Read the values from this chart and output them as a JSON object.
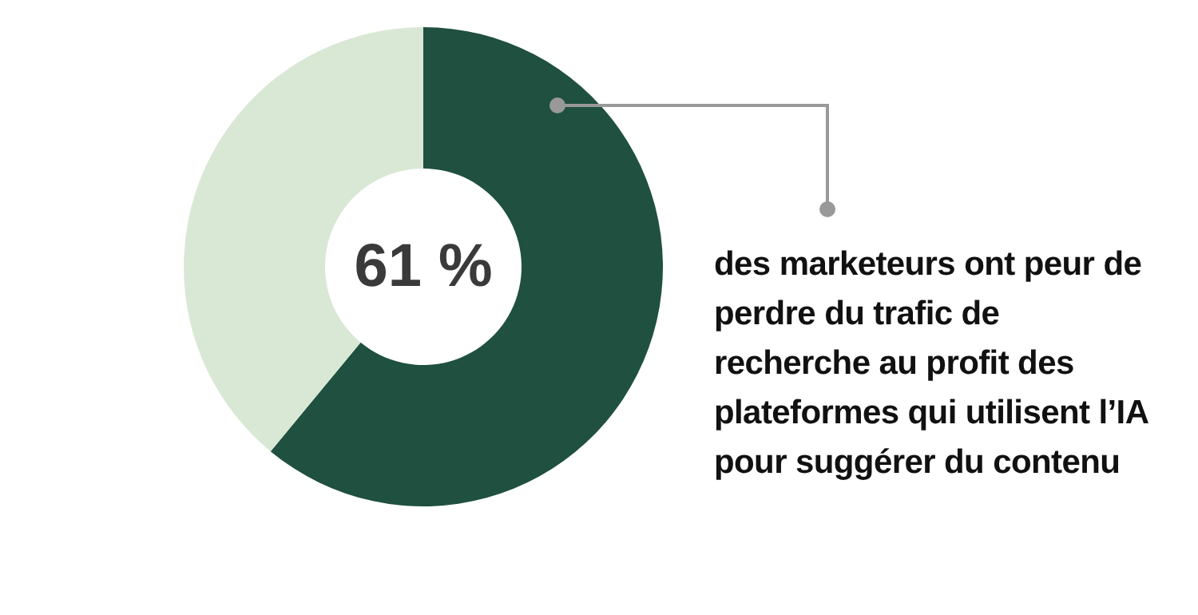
{
  "chart_data": {
    "type": "donut",
    "categories": [
      null,
      null
    ],
    "values": [
      61,
      39
    ],
    "colors": [
      "#1f5040",
      "#d9e8d5"
    ],
    "annotations": [
      "61 %",
      "des marketeurs ont peur de\nperdre du trafic de\nrecherche au profit des\nplateformes qui utilisent l’IA\npour suggérer du contenu"
    ]
  }
}
